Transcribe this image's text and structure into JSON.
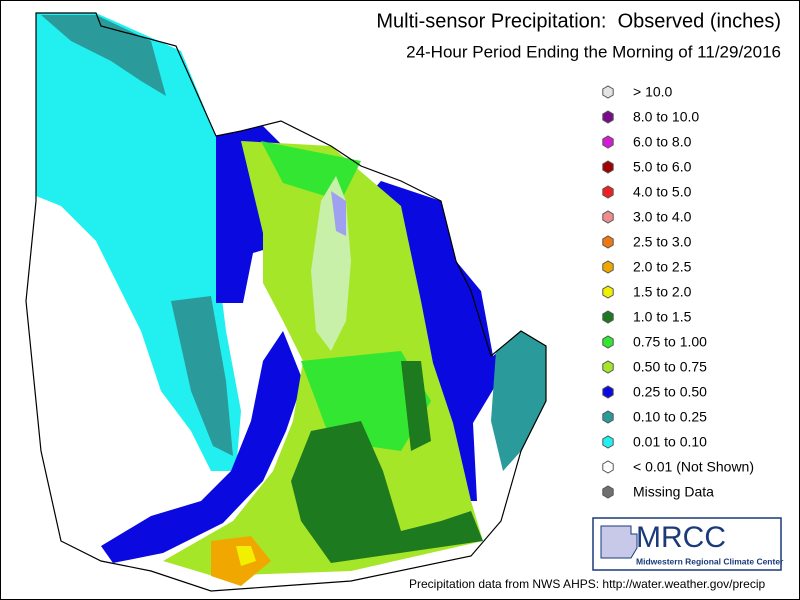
{
  "title": "Multi-sensor Precipitation:  Observed (inches)",
  "subtitle": "24-Hour Period Ending the Morning of 11/29/2016",
  "legend": [
    {
      "label": "> 10.0",
      "color": "#e4e4e4"
    },
    {
      "label": "8.0 to 10.0",
      "color": "#7a0a8c"
    },
    {
      "label": "6.0 to 8.0",
      "color": "#d21ed2"
    },
    {
      "label": "5.0 to 6.0",
      "color": "#a00000"
    },
    {
      "label": "4.0 to 5.0",
      "color": "#ee2222"
    },
    {
      "label": "3.0 to 4.0",
      "color": "#f08c8c"
    },
    {
      "label": "2.5 to 3.0",
      "color": "#f07814"
    },
    {
      "label": "2.0 to 2.5",
      "color": "#f0a800"
    },
    {
      "label": "1.5 to 2.0",
      "color": "#f0f000"
    },
    {
      "label": "1.0 to 1.5",
      "color": "#1e7a1e"
    },
    {
      "label": "0.75 to 1.00",
      "color": "#32e632"
    },
    {
      "label": "0.50 to 0.75",
      "color": "#a6e628"
    },
    {
      "label": "0.25 to 0.50",
      "color": "#0a0ae0"
    },
    {
      "label": "0.10 to 0.25",
      "color": "#2a9a9a"
    },
    {
      "label": "0.01 to 0.10",
      "color": "#22f0f0"
    },
    {
      "label": "< 0.01 (Not Shown)",
      "color": "#ffffff"
    },
    {
      "label": "Missing Data",
      "color": "#707070"
    }
  ],
  "logo": {
    "acronym": "MRCC",
    "name": "Midwestern Regional Climate Center"
  },
  "footer": "Precipitation data from NWS AHPS: http://water.weather.gov/precip"
}
